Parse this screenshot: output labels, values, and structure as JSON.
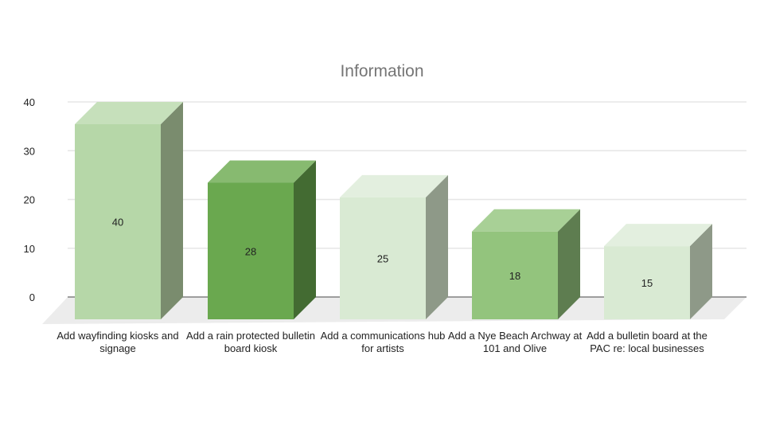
{
  "chart_data": {
    "type": "bar",
    "title": "Information",
    "categories": [
      "Add wayfinding kiosks and signage",
      "Add a rain protected bulletin board kiosk",
      "Add a communications hub for artists",
      "Add a Nye Beach Archway at 101 and Olive",
      "Add a bulletin board at the PAC re: local businesses"
    ],
    "values": [
      40,
      28,
      25,
      18,
      15
    ],
    "yticks": [
      0,
      10,
      20,
      30,
      40
    ],
    "ylim": [
      0,
      40
    ],
    "grid": true,
    "legend": "none",
    "colors": [
      {
        "front": "#b6d7a8",
        "top": "#c6e0bb",
        "side": "#7a8c6e"
      },
      {
        "front": "#6aa84f",
        "top": "#87ba70",
        "side": "#436b32"
      },
      {
        "front": "#d9ead3",
        "top": "#e3efdf",
        "side": "#8e9988"
      },
      {
        "front": "#93c47d",
        "top": "#a8d096",
        "side": "#5e7d50"
      },
      {
        "front": "#d9ead3",
        "top": "#e3efdf",
        "side": "#8e9988"
      }
    ],
    "floor_color": "#ececec",
    "grid_color": "#e6e6e6",
    "axis_color": "#9e9e9e"
  }
}
